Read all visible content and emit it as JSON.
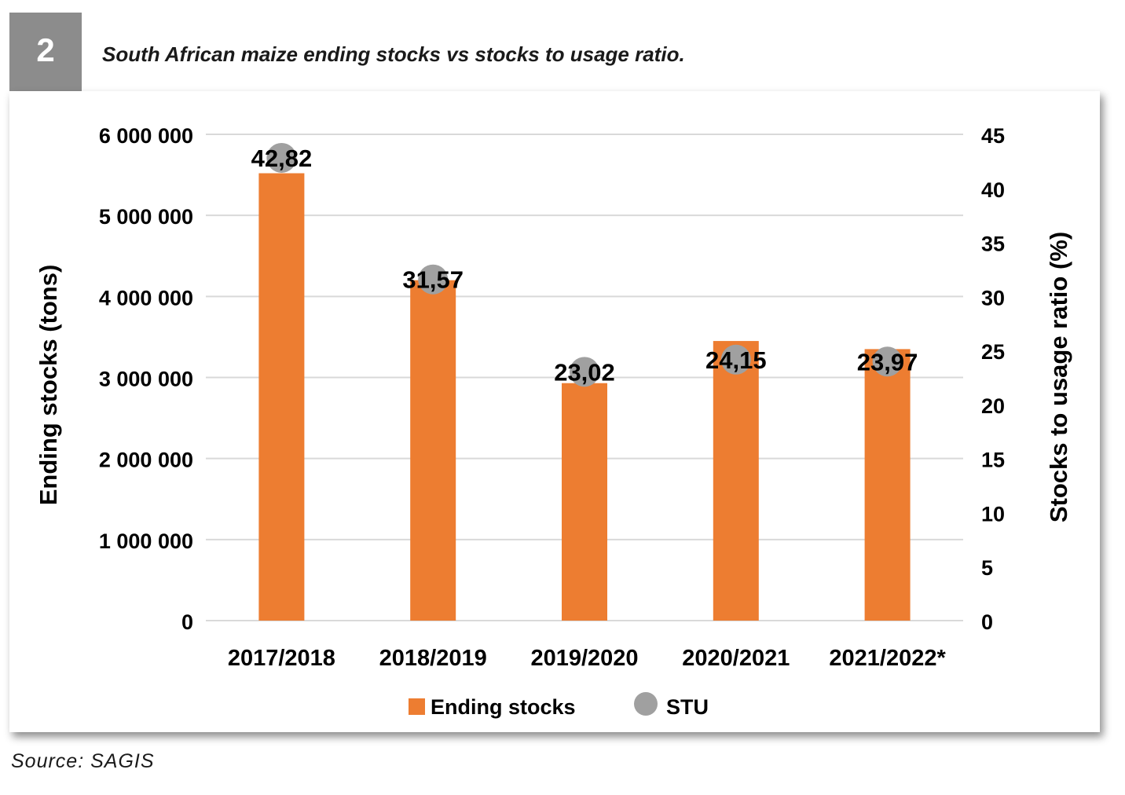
{
  "figure": {
    "number": "2",
    "caption": "South African maize ending stocks vs stocks to usage ratio.",
    "source": "Source: SAGIS"
  },
  "chart_data": {
    "type": "bar",
    "categories": [
      "2017/2018",
      "2018/2019",
      "2019/2020",
      "2020/2021",
      "2021/2022*"
    ],
    "series": [
      {
        "name": "Ending stocks",
        "type": "bar",
        "axis": "left",
        "color": "#ed7d31",
        "values": [
          5520000,
          4200000,
          2930000,
          3450000,
          3350000
        ]
      },
      {
        "name": "STU",
        "type": "scatter",
        "axis": "right",
        "color": "#a0a0a0",
        "values": [
          42.82,
          31.57,
          23.02,
          24.15,
          23.97
        ],
        "data_labels": [
          "42,82",
          "31,57",
          "23,02",
          "24,15",
          "23,97"
        ]
      }
    ],
    "ylabel": "Ending stocks (tons)",
    "ylim": [
      0,
      6000000
    ],
    "yticks": [
      0,
      1000000,
      2000000,
      3000000,
      4000000,
      5000000,
      6000000
    ],
    "ytick_labels": [
      "0",
      "1 000 000",
      "2 000 000",
      "3 000 000",
      "4 000 000",
      "5 000 000",
      "6 000 000"
    ],
    "y2label": "Stocks to usage ratio (%)",
    "y2lim": [
      0,
      45
    ],
    "y2ticks": [
      0,
      5,
      10,
      15,
      20,
      25,
      30,
      35,
      40,
      45
    ],
    "y2tick_labels": [
      "0",
      "5",
      "10",
      "15",
      "20",
      "25",
      "30",
      "35",
      "40",
      "45"
    ],
    "grid": true,
    "legend_position": "bottom"
  }
}
